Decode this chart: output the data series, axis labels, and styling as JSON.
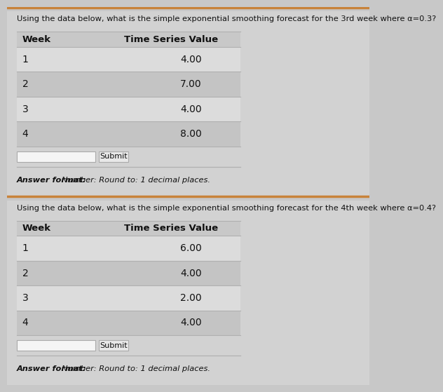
{
  "panel1": {
    "question": "Using the data below, what is the simple exponential smoothing forecast for the 3rd week where α=0.3?",
    "col1_header": "Week",
    "col2_header": "Time Series Value",
    "rows": [
      {
        "week": "1",
        "value": "4.00"
      },
      {
        "week": "2",
        "value": "7.00"
      },
      {
        "week": "3",
        "value": "4.00"
      },
      {
        "week": "4",
        "value": "8.00"
      }
    ],
    "answer_format": "Answer format: Number: Round to: 1 decimal places."
  },
  "panel2": {
    "question": "Using the data below, what is the simple exponential smoothing forecast for the 4th week where α=0.4?",
    "col1_header": "Week",
    "col2_header": "Time Series Value",
    "rows": [
      {
        "week": "1",
        "value": "6.00"
      },
      {
        "week": "2",
        "value": "4.00"
      },
      {
        "week": "3",
        "value": "2.00"
      },
      {
        "week": "4",
        "value": "4.00"
      }
    ],
    "answer_format": "Answer format: Number: Round to: 1 decimal places."
  },
  "bg_color": "#c8c8c8",
  "panel_bg": "#d2d2d2",
  "row_light": "#dcdcdc",
  "row_dark": "#c4c4c4",
  "header_bg": "#c8c8c8",
  "divider_color": "#c8833a",
  "input_box_color": "#f5f5f5",
  "button_bg": "#e8e8e8",
  "button_border": "#aaaaaa",
  "text_color": "#111111",
  "line_color": "#b0b0b0"
}
